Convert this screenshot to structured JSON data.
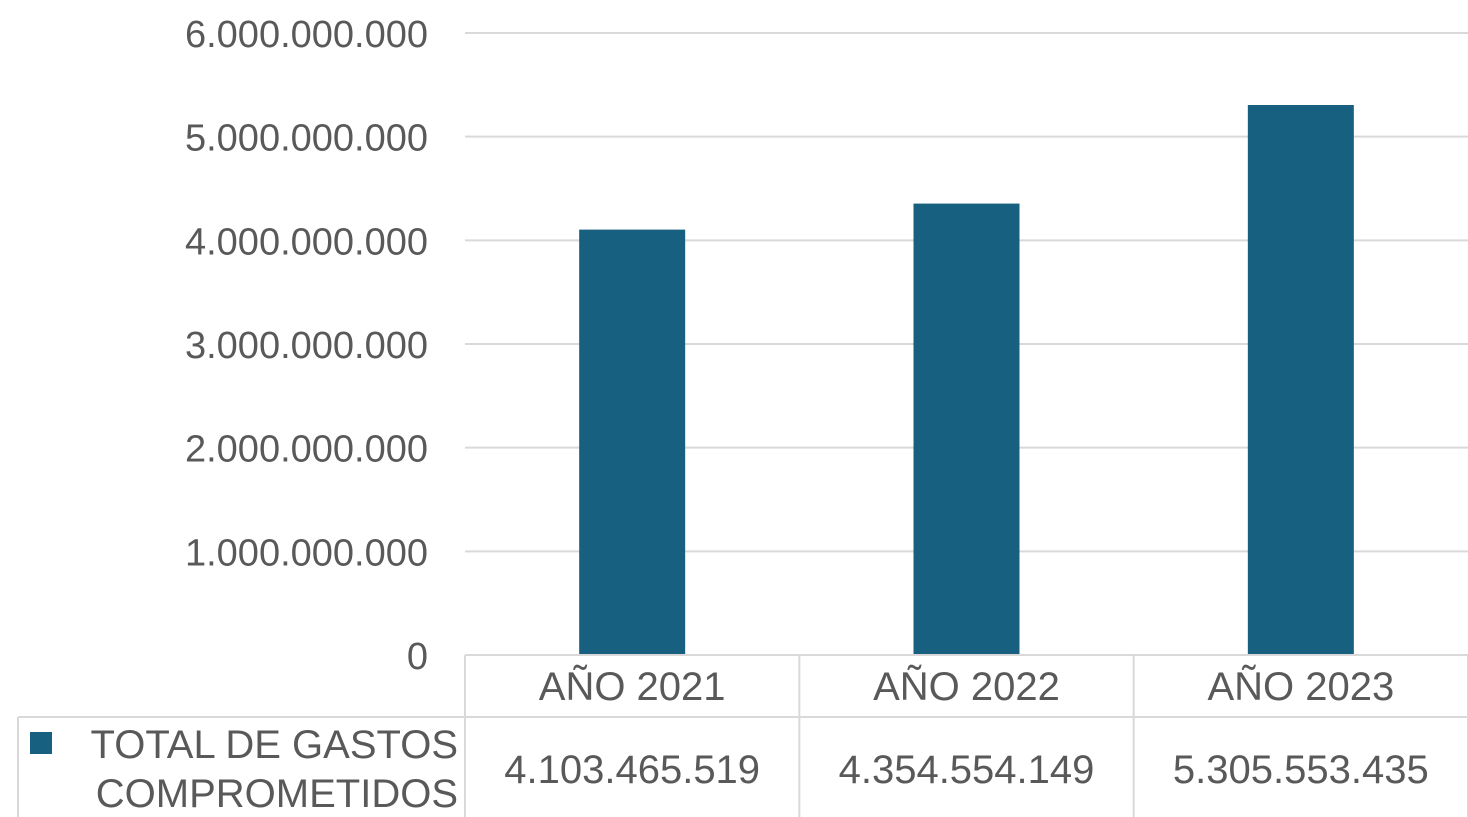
{
  "chart_data": {
    "type": "bar",
    "categories": [
      "AÑO 2021",
      "AÑO 2022",
      "AÑO 2023"
    ],
    "series": [
      {
        "name": "TOTAL DE GASTOS COMPROMETIDOS",
        "name_lines": [
          "TOTAL DE GASTOS",
          "COMPROMETIDOS"
        ],
        "values": [
          4103465519,
          4354554149,
          5305553435
        ],
        "value_labels": [
          "4.103.465.519",
          "4.354.554.149",
          "5.305.553.435"
        ],
        "color": "#17607f"
      }
    ],
    "ylim": [
      0,
      6000000000
    ],
    "yticks": [
      0,
      1000000000,
      2000000000,
      3000000000,
      4000000000,
      5000000000,
      6000000000
    ],
    "ytick_labels": [
      "0",
      "1.000.000.000",
      "2.000.000.000",
      "3.000.000.000",
      "4.000.000.000",
      "5.000.000.000",
      "6.000.000.000"
    ],
    "grid": true,
    "legend": "data-table",
    "gridline_color": "#d9d9d9",
    "text_color": "#595959"
  }
}
